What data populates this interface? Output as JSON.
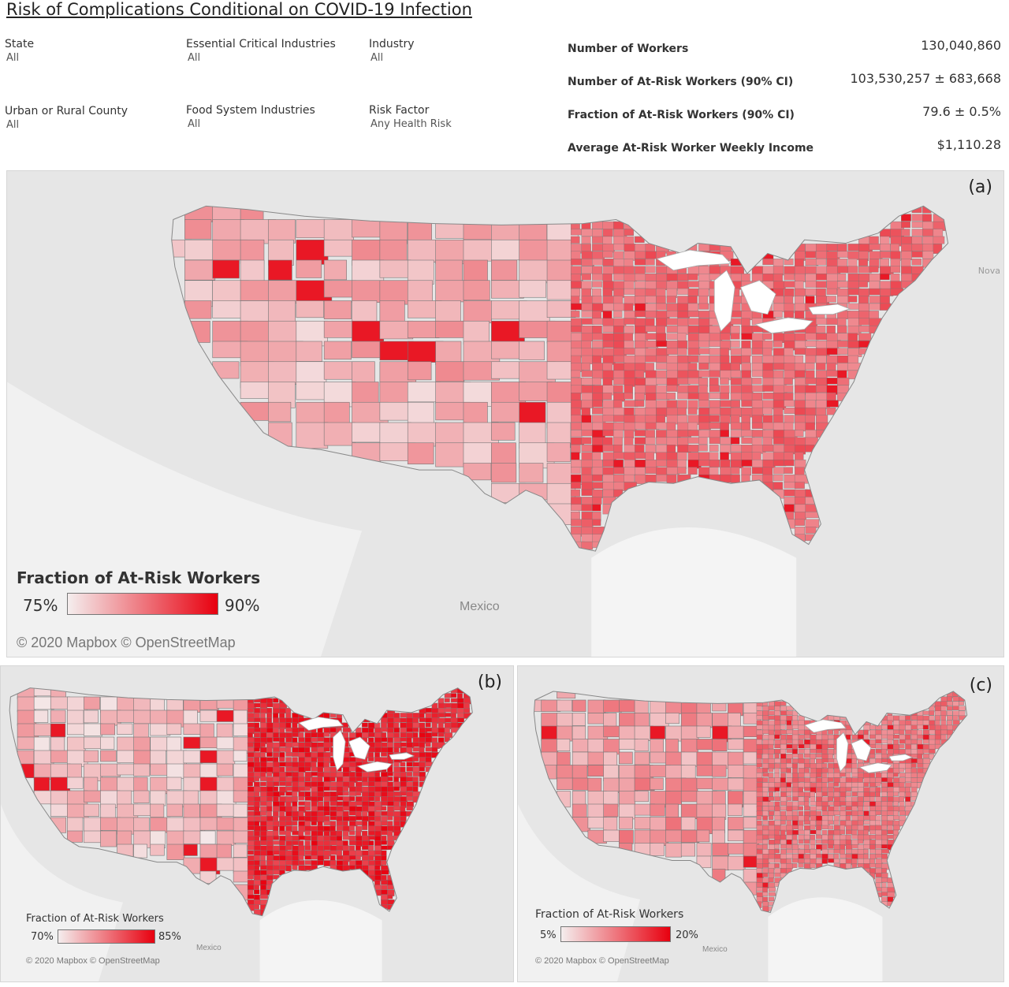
{
  "title": "Risk of Complications Conditional on COVID-19 Infection",
  "filters": [
    {
      "label": "State",
      "value": "All"
    },
    {
      "label": "Essential Critical Industries",
      "value": "All"
    },
    {
      "label": "Industry",
      "value": "All"
    },
    {
      "label": "Urban or Rural County",
      "value": "All"
    },
    {
      "label": "Food System Industries",
      "value": "All"
    },
    {
      "label": "Risk Factor",
      "value": "Any Health Risk"
    }
  ],
  "stats": [
    {
      "label": "Number of Workers",
      "value": "130,040,860"
    },
    {
      "label": "Number of At-Risk Workers (90% CI)",
      "value": "103,530,257 ± 683,668"
    },
    {
      "label": "Fraction of At-Risk Workers (90% CI)",
      "value": "79.6 ± 0.5%"
    },
    {
      "label": "Average At-Risk Worker Weekly Income",
      "value": "$1,110.28"
    }
  ],
  "map_common": {
    "credit": "© 2020 Mapbox © OpenStreetMap",
    "mexico_label": "Mexico",
    "nova_label": "Nova",
    "land_color": "#e6e6e6",
    "water_color": "#ffffff",
    "border_color": "#777777"
  },
  "maps": {
    "a": {
      "letter": "(a)",
      "legend_title": "Fraction of At-Risk Workers",
      "legend_min": "75%",
      "legend_max": "90%",
      "color_low": "#f4eeee",
      "color_high": "#e8000f",
      "west_intensity": 0.25,
      "east_intensity": 0.55
    },
    "b": {
      "letter": "(b)",
      "legend_title": "Fraction of At-Risk Workers",
      "legend_min": "70%",
      "legend_max": "85%",
      "color_low": "#f4eeee",
      "color_high": "#e8000f",
      "west_intensity": 0.2,
      "east_intensity": 0.85
    },
    "c": {
      "letter": "(c)",
      "legend_title": "Fraction of At-Risk Workers",
      "legend_min": "5%",
      "legend_max": "20%",
      "color_low": "#f4eeee",
      "color_high": "#e8000f",
      "west_intensity": 0.35,
      "east_intensity": 0.5
    }
  }
}
